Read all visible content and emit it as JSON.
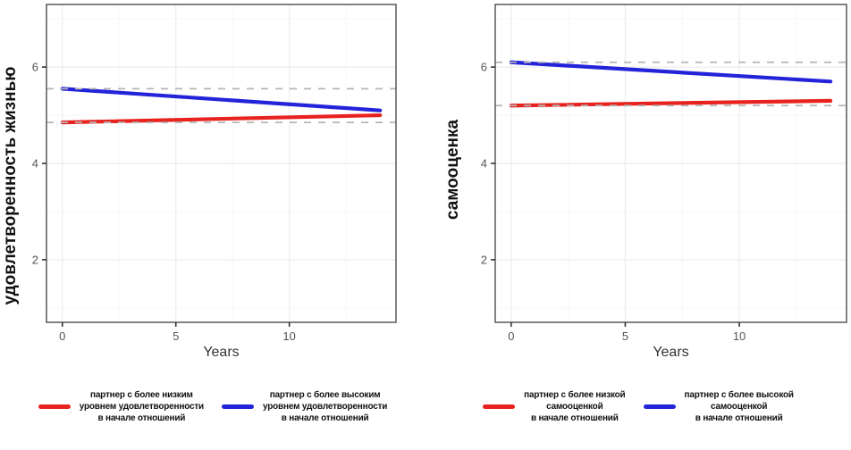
{
  "colors": {
    "red_line": "#e8231f",
    "blue_line": "#2323d9",
    "reference_dashed": "#b5b5b5",
    "grid_major": "#ececec",
    "grid_minor": "#f6f6f6",
    "panel_border": "#4d4d4d",
    "tick_mark": "#333333",
    "tick_label": "#555555",
    "axis_title": "#111111",
    "x_title": "#333333"
  },
  "chart_data": [
    {
      "type": "line",
      "title": "",
      "ylabel": "удовлетворенность жизнью",
      "xlabel": "Years",
      "xlim": [
        -0.7,
        14.7
      ],
      "ylim": [
        0.7,
        7.3
      ],
      "x_ticks": [
        0,
        5,
        10
      ],
      "y_ticks": [
        2,
        4,
        6
      ],
      "x_minor": [
        2.5,
        7.5,
        12.5
      ],
      "y_minor": [
        1,
        3,
        5,
        7
      ],
      "grid": true,
      "legend_position": "bottom",
      "series": [
        {
          "name": "партнер с более низким уровнем удовлетворенности в начале отношений",
          "color_key": "red_line",
          "x": [
            0,
            14
          ],
          "y": [
            4.85,
            5.0
          ]
        },
        {
          "name": "партнер с более высоким уровнем удовлетворенности в начале отношений",
          "color_key": "blue_line",
          "x": [
            0,
            14
          ],
          "y": [
            5.55,
            5.1
          ]
        }
      ],
      "reference_lines": [
        {
          "y": 5.55,
          "style": "dashed"
        },
        {
          "y": 4.85,
          "style": "dashed"
        }
      ],
      "legend": [
        {
          "color_key": "red_line",
          "lines": [
            "партнер с более низким",
            "уровнем удовлетворенности",
            "в начале отношений"
          ]
        },
        {
          "color_key": "blue_line",
          "lines": [
            "партнер с более высоким",
            "уровнем удовлетворенности",
            "в начале отношений"
          ]
        }
      ]
    },
    {
      "type": "line",
      "title": "",
      "ylabel": "самооценка",
      "xlabel": "Years",
      "xlim": [
        -0.7,
        14.7
      ],
      "ylim": [
        0.7,
        7.3
      ],
      "x_ticks": [
        0,
        5,
        10
      ],
      "y_ticks": [
        2,
        4,
        6
      ],
      "x_minor": [
        2.5,
        7.5,
        12.5
      ],
      "y_minor": [
        1,
        3,
        5,
        7
      ],
      "grid": true,
      "legend_position": "bottom",
      "series": [
        {
          "name": "партнер с более низкой самооценкой в начале отношений",
          "color_key": "red_line",
          "x": [
            0,
            14
          ],
          "y": [
            5.2,
            5.3
          ]
        },
        {
          "name": "партнер с более высокой самооценкой в начале отношений",
          "color_key": "blue_line",
          "x": [
            0,
            14
          ],
          "y": [
            6.1,
            5.7
          ]
        }
      ],
      "reference_lines": [
        {
          "y": 6.1,
          "style": "dashed"
        },
        {
          "y": 5.2,
          "style": "dashed"
        }
      ],
      "legend": [
        {
          "color_key": "red_line",
          "lines": [
            "партнер с более низкой",
            "самооценкой",
            "в начале отношений"
          ]
        },
        {
          "color_key": "blue_line",
          "lines": [
            "партнер с более высокой",
            "самооценкой",
            "в начале отношений"
          ]
        }
      ]
    }
  ]
}
